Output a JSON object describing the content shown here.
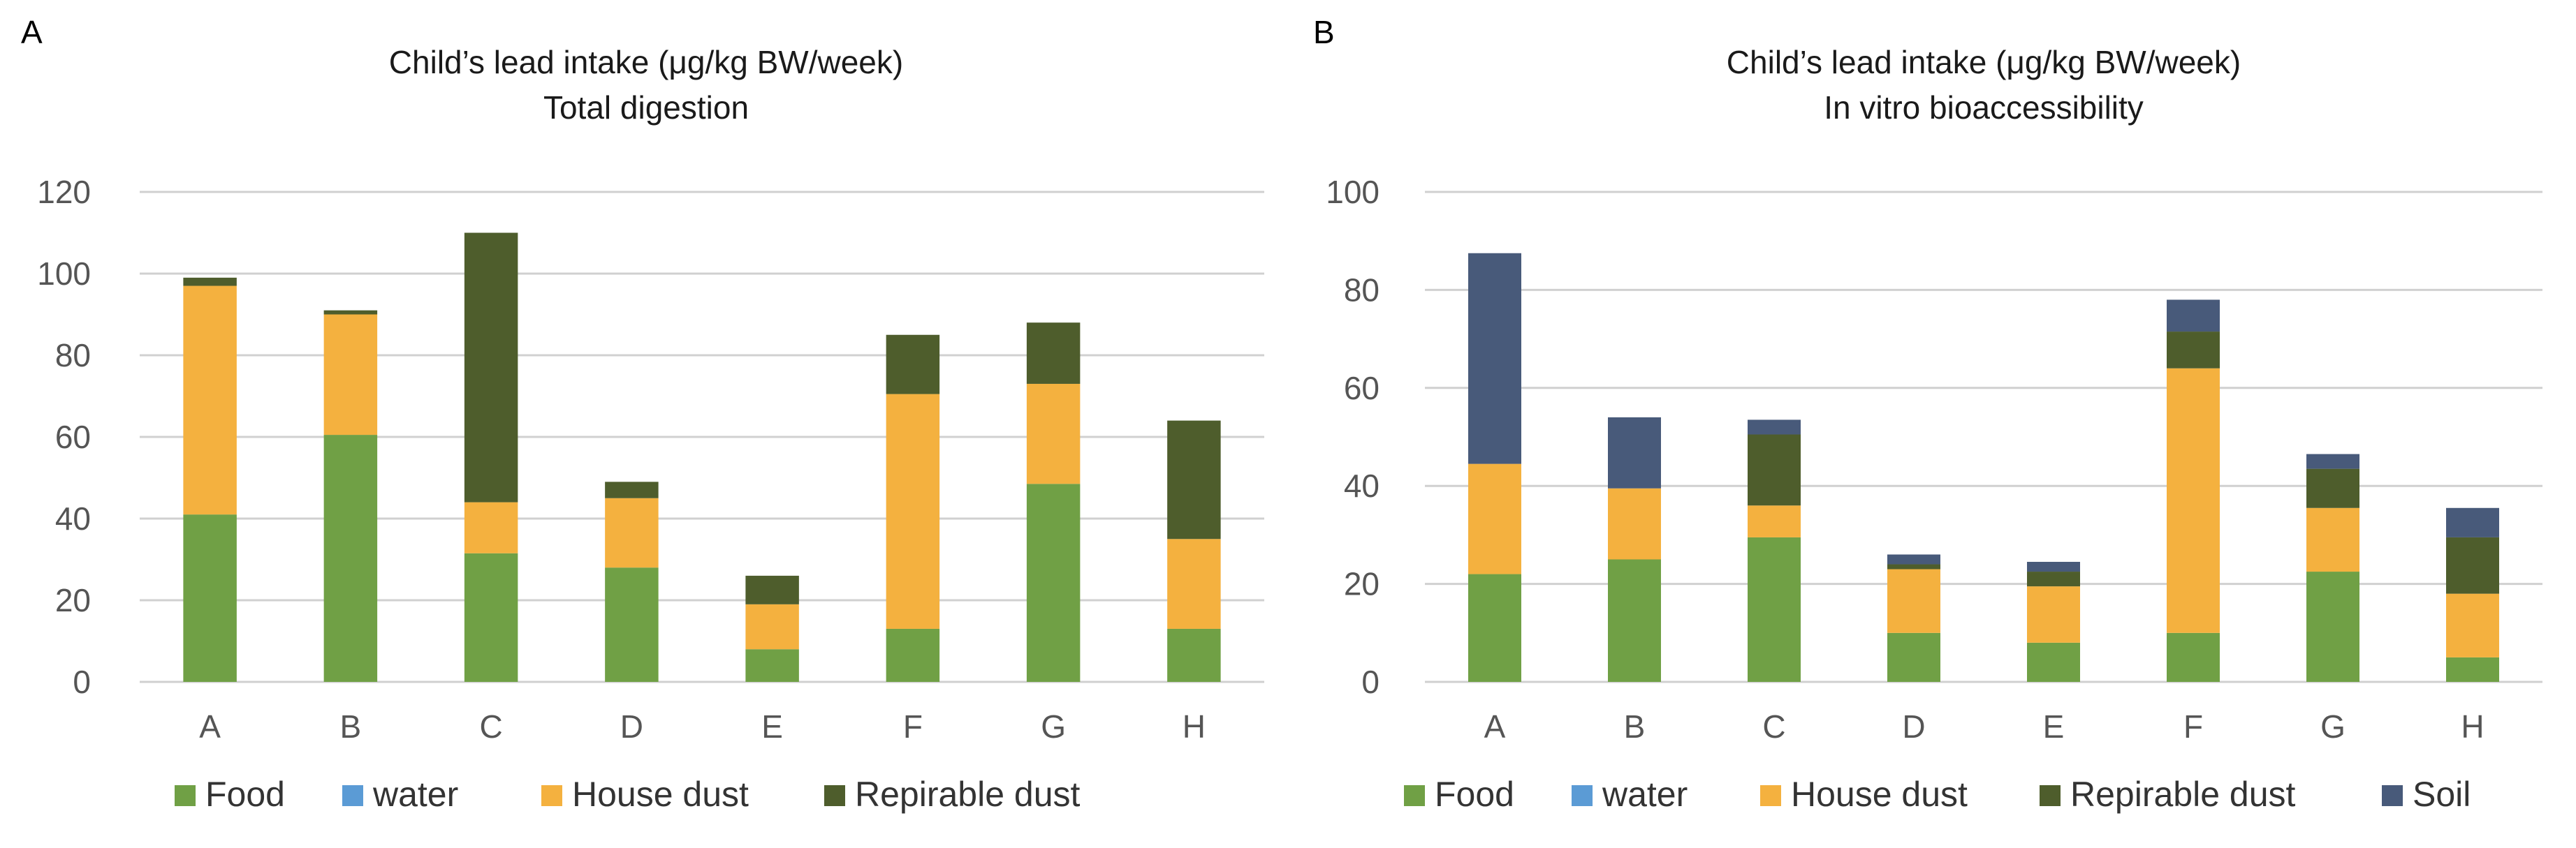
{
  "colors": {
    "food": "#70a045",
    "water": "#5b9bd5",
    "house_dust": "#f4b13f",
    "repirable_dust": "#4e5d2c",
    "soil": "#485a7a",
    "grid": "#d0d0d0"
  },
  "chart_data": [
    {
      "type": "bar",
      "stacked": true,
      "panel_label": "A",
      "title": "Child’s lead intake (μg/kg BW/week)",
      "subtitle": "Total digestion",
      "xlabel": "",
      "ylabel": "",
      "categories": [
        "A",
        "B",
        "C",
        "D",
        "E",
        "F",
        "G",
        "H"
      ],
      "yticks": [
        "0",
        "20",
        "40",
        "60",
        "80",
        "100",
        "120"
      ],
      "ylim": [
        0,
        120
      ],
      "grid": true,
      "legend_position": "bottom",
      "series": [
        {
          "name": "Food",
          "color_key": "food",
          "values": [
            41,
            60.5,
            31.5,
            28,
            8,
            13,
            48.5,
            13
          ]
        },
        {
          "name": "water",
          "color_key": "water",
          "values": [
            0,
            0,
            0,
            0,
            0,
            0,
            0,
            0
          ]
        },
        {
          "name": "House dust",
          "color_key": "house_dust",
          "values": [
            56,
            29.5,
            12.5,
            17,
            11,
            57.5,
            24.5,
            22
          ]
        },
        {
          "name": "Repirable dust",
          "color_key": "repirable_dust",
          "values": [
            2,
            1,
            66,
            4,
            7,
            14.5,
            15,
            29
          ]
        }
      ]
    },
    {
      "type": "bar",
      "stacked": true,
      "panel_label": "B",
      "title": "Child’s lead intake (μg/kg BW/week)",
      "subtitle": "In vitro bioaccessibility",
      "xlabel": "",
      "ylabel": "",
      "categories": [
        "A",
        "B",
        "C",
        "D",
        "E",
        "F",
        "G",
        "H"
      ],
      "yticks": [
        "0",
        "20",
        "40",
        "60",
        "80",
        "100"
      ],
      "ylim": [
        0,
        100
      ],
      "grid": true,
      "legend_position": "bottom",
      "series": [
        {
          "name": "Food",
          "color_key": "food",
          "values": [
            22,
            25,
            29.5,
            10,
            8,
            10,
            22.5,
            5
          ]
        },
        {
          "name": "water",
          "color_key": "water",
          "values": [
            0,
            0,
            0,
            0,
            0,
            0,
            0,
            0
          ]
        },
        {
          "name": "House dust",
          "color_key": "house_dust",
          "values": [
            22.5,
            14.5,
            6.5,
            13,
            11.5,
            54,
            13,
            13
          ]
        },
        {
          "name": "Repirable dust",
          "color_key": "repirable_dust",
          "values": [
            0,
            0,
            14.5,
            1,
            3,
            7.5,
            8,
            11.5
          ]
        },
        {
          "name": "Soil",
          "color_key": "soil",
          "values": [
            43,
            14.5,
            3,
            2,
            2,
            6.5,
            3,
            6
          ]
        }
      ]
    }
  ]
}
